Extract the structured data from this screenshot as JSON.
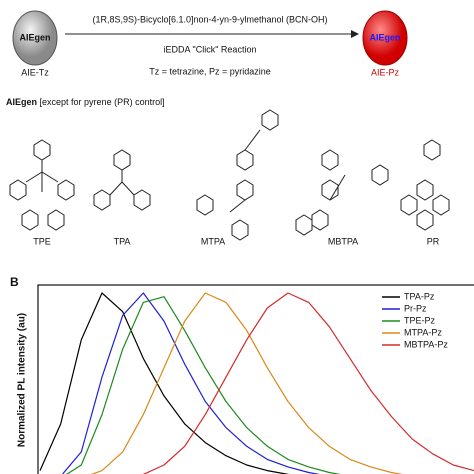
{
  "panel_a": {
    "reactant_core": "AIEgen",
    "reactant": "AIE-Tz",
    "product_core": "AIEgen",
    "product": "AIE-Pz",
    "reagent": "(1R,8S,9S)-Bicyclo[6.1.0]non-4-yn-9-ylmethanol (BCN-OH)",
    "reaction": "iEDDA \"Click\" Reaction",
    "legend": "Tz = tetrazine, Pz = pyridazine",
    "aiegen_heading": "AIEgen",
    "aiegen_note": "[except for pyrene (PR) control]",
    "molecules": [
      "TPE",
      "TPA",
      "MTPA",
      "MBTPA",
      "PR"
    ]
  },
  "panel_b": {
    "label": "B"
  },
  "chart_data": {
    "type": "line",
    "y_label": "Normalized PL intensity (au)",
    "series": [
      {
        "name": "TPA-Pz",
        "color": "#000000",
        "values": [
          0.05,
          0.3,
          0.75,
          1.0,
          0.9,
          0.65,
          0.45,
          0.3,
          0.2,
          0.13,
          0.08,
          0.05,
          0.03,
          0.02,
          0.01,
          0,
          0,
          0,
          0,
          0,
          0,
          0
        ]
      },
      {
        "name": "Pr-Pz",
        "color": "#1f1fd6",
        "values": [
          0,
          0.02,
          0.15,
          0.55,
          0.88,
          1.0,
          0.85,
          0.62,
          0.42,
          0.28,
          0.18,
          0.11,
          0.07,
          0.04,
          0.02,
          0.01,
          0,
          0,
          0,
          0,
          0,
          0
        ]
      },
      {
        "name": "TPE-Pz",
        "color": "#1e8a1e",
        "values": [
          0,
          0.01,
          0.08,
          0.35,
          0.7,
          0.95,
          0.98,
          0.8,
          0.6,
          0.42,
          0.28,
          0.18,
          0.11,
          0.07,
          0.04,
          0.02,
          0.01,
          0,
          0,
          0,
          0,
          0
        ]
      },
      {
        "name": "MTPA-Pz",
        "color": "#d98a1a",
        "values": [
          0,
          0,
          0.01,
          0.05,
          0.15,
          0.35,
          0.6,
          0.85,
          1.0,
          0.95,
          0.8,
          0.6,
          0.42,
          0.28,
          0.18,
          0.11,
          0.07,
          0.04,
          0.02,
          0.01,
          0,
          0
        ]
      },
      {
        "name": "MBTPA-Pz",
        "color": "#d42a2a",
        "values": [
          0,
          0,
          0,
          0,
          0.01,
          0.03,
          0.08,
          0.18,
          0.35,
          0.55,
          0.75,
          0.92,
          1.0,
          0.95,
          0.82,
          0.65,
          0.48,
          0.34,
          0.22,
          0.14,
          0.08,
          0.05
        ]
      }
    ]
  }
}
